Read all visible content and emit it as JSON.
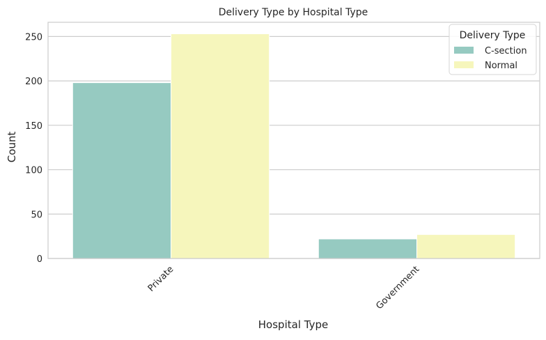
{
  "chart_data": {
    "type": "bar",
    "title": "Delivery Type by Hospital Type",
    "xlabel": "Hospital Type",
    "ylabel": "Count",
    "categories": [
      "Private",
      "Government"
    ],
    "series": [
      {
        "name": "C-section",
        "values": [
          198,
          22
        ],
        "color": "#96cac1"
      },
      {
        "name": "Normal",
        "values": [
          253,
          27
        ],
        "color": "#f6f6bc"
      }
    ],
    "ylim": [
      0,
      266
    ],
    "yticks": [
      0,
      50,
      100,
      150,
      200,
      250
    ],
    "grid": true,
    "legend": {
      "title": "Delivery Type",
      "position": "top-right"
    }
  }
}
